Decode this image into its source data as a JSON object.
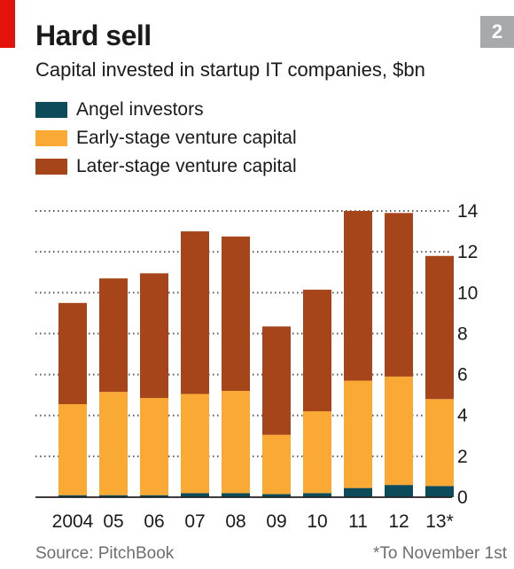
{
  "header": {
    "badge": "2"
  },
  "colors": {
    "accent_red": "#e3120b",
    "angel": "#0e4b5a",
    "early": "#f9a934",
    "later": "#a6451a",
    "grid": "#58595b"
  },
  "chart_data": {
    "type": "bar",
    "stacked": true,
    "title": "Hard sell",
    "subtitle": "Capital invested in startup IT companies, $bn",
    "categories": [
      "2004",
      "05",
      "06",
      "07",
      "08",
      "09",
      "10",
      "11",
      "12",
      "13*"
    ],
    "series": [
      {
        "name": "Angel investors",
        "color": "#0e4b5a",
        "values": [
          0.1,
          0.1,
          0.1,
          0.2,
          0.2,
          0.15,
          0.2,
          0.45,
          0.6,
          0.55
        ]
      },
      {
        "name": "Early-stage venture capital",
        "color": "#f9a934",
        "values": [
          4.45,
          5.05,
          4.75,
          4.85,
          5.0,
          2.9,
          4.0,
          5.25,
          5.3,
          4.25
        ]
      },
      {
        "name": "Later-stage venture capital",
        "color": "#a6451a",
        "values": [
          4.95,
          5.55,
          6.1,
          7.95,
          7.55,
          5.3,
          5.95,
          8.3,
          8.0,
          7.0
        ]
      }
    ],
    "ylim": [
      0,
      14
    ],
    "yticks": [
      "0",
      "2",
      "4",
      "6",
      "8",
      "10",
      "12",
      "14"
    ],
    "grid": true,
    "yaxis_side": "right",
    "legend_position": "top-left",
    "source": "Source: PitchBook",
    "footnote": "*To November 1st"
  }
}
